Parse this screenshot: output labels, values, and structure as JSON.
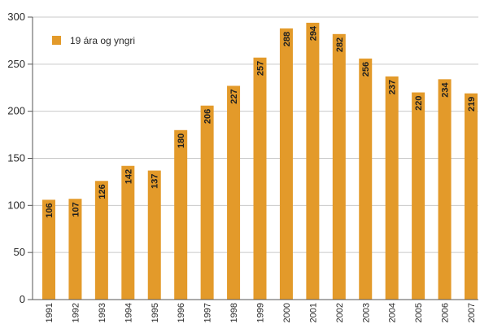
{
  "chart_data": {
    "type": "bar",
    "categories": [
      "1991",
      "1992",
      "1993",
      "1994",
      "1995",
      "1996",
      "1997",
      "1998",
      "1999",
      "2000",
      "2001",
      "2002",
      "2003",
      "2004",
      "2005",
      "2006",
      "2007"
    ],
    "series": [
      {
        "name": "19 ára og yngri",
        "values": [
          106,
          107,
          126,
          142,
          137,
          180,
          206,
          227,
          257,
          288,
          294,
          282,
          256,
          237,
          220,
          234,
          219
        ],
        "color": "#e39a2a"
      }
    ],
    "yticks": [
      0,
      50,
      100,
      150,
      200,
      250,
      300
    ],
    "ylim": [
      0,
      300
    ],
    "grid": true,
    "legend": "top-left",
    "data_labels": true,
    "colors": {
      "bar": "#e39a2a",
      "grid": "#c9c9c9",
      "axis": "#555555"
    }
  }
}
